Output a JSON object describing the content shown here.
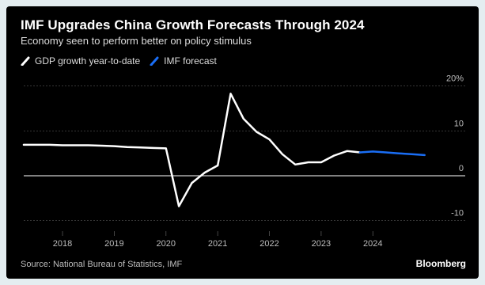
{
  "title": "IMF Upgrades China Growth Forecasts Through 2024",
  "subtitle": "Economy seen to perform better on policy stimulus",
  "legend": {
    "gdp_label": "GDP growth year-to-date",
    "forecast_label": "IMF forecast"
  },
  "source": "Source: National Bureau of Statistics, IMF",
  "brand": "Bloomberg",
  "colors": {
    "background": "#000000",
    "gdp_line": "#ffffff",
    "forecast_line": "#1a6ef5",
    "zero_line": "#ffffff",
    "grid": "#555555",
    "text": "#bdbdbd"
  },
  "chart_data": {
    "type": "line",
    "title": "IMF Upgrades China Growth Forecasts Through 2024",
    "subtitle": "Economy seen to perform better on policy stimulus",
    "xlabel": "",
    "ylabel": "",
    "x_ticks": [
      "2018",
      "2019",
      "2020",
      "2021",
      "2022",
      "2023",
      "2024"
    ],
    "y_ticks": [
      20,
      10,
      0,
      -10
    ],
    "y_tick_labels": [
      "20%",
      "10",
      "0",
      "-10"
    ],
    "ylim": [
      -12,
      21
    ],
    "xlim": [
      2017.25,
      2025.25
    ],
    "grid": "horizontal",
    "legend_position": "top-left",
    "series": [
      {
        "name": "GDP growth year-to-date",
        "x": [
          2017.25,
          2017.5,
          2017.75,
          2018.0,
          2018.25,
          2018.5,
          2018.75,
          2019.0,
          2019.25,
          2019.5,
          2019.75,
          2020.0,
          2020.25,
          2020.5,
          2020.75,
          2021.0,
          2021.25,
          2021.5,
          2021.75,
          2022.0,
          2022.25,
          2022.5,
          2022.75,
          2023.0,
          2023.25,
          2023.5,
          2023.75
        ],
        "values": [
          6.9,
          6.9,
          6.9,
          6.8,
          6.8,
          6.8,
          6.7,
          6.6,
          6.4,
          6.3,
          6.2,
          6.1,
          -6.8,
          -1.6,
          0.7,
          2.3,
          18.3,
          12.7,
          9.8,
          8.1,
          4.8,
          2.5,
          3.0,
          3.0,
          4.5,
          5.5,
          5.2
        ],
        "color": "#ffffff"
      },
      {
        "name": "IMF forecast",
        "x": [
          2023.75,
          2024.0,
          2024.25,
          2024.5,
          2024.75,
          2025.0
        ],
        "values": [
          5.2,
          5.4,
          5.2,
          5.0,
          4.8,
          4.6
        ],
        "color": "#1a6ef5"
      }
    ]
  }
}
